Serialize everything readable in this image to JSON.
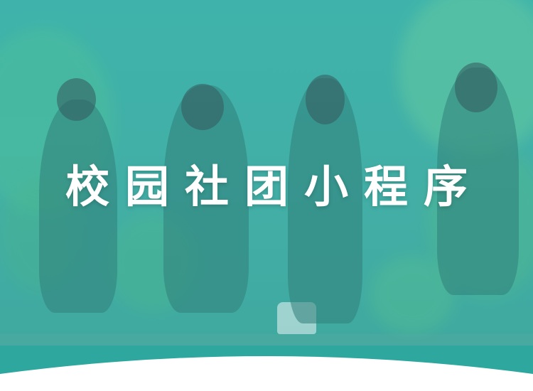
{
  "banner": {
    "title": "校园社团小程序",
    "accent_color": "#3fb3ab",
    "bottom_curve_color": "#ffffff",
    "bottom_band_color": "#2ea79e"
  }
}
